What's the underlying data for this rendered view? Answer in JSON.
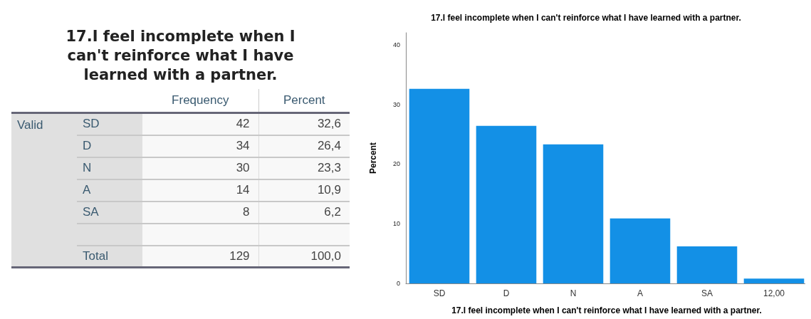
{
  "chart_data": [
    {
      "type": "other",
      "title": "17.I feel incomplete when I can't reinforce what I have learned with a partner.",
      "annotations": [
        "Valid"
      ],
      "categories": [
        "SD",
        "D",
        "N",
        "A",
        "SA",
        null,
        "Total"
      ],
      "data_labels": true,
      "series": [
        {
          "name": "Frequency",
          "values": [
            42,
            34,
            30,
            14,
            8,
            null,
            129
          ]
        },
        {
          "name": "Percent",
          "values": [
            32.6,
            26.4,
            23.3,
            10.9,
            6.2,
            null,
            100.0
          ],
          "value_labels": [
            "32,6",
            "26,4",
            "23,3",
            "10,9",
            "6,2",
            null,
            "100,0"
          ]
        }
      ]
    },
    {
      "type": "bar",
      "title": "17.I feel incomplete when I can't reinforce what I have learned with a partner.",
      "xlabel": "17.I feel incomplete when I can't reinforce what I have learned with a partner.",
      "ylabel": "Percent",
      "categories": [
        "SD",
        "D",
        "N",
        "A",
        "SA",
        "12,00"
      ],
      "values": [
        32.6,
        26.4,
        23.3,
        10.9,
        6.2,
        0.8
      ],
      "color": "#1390e6",
      "ylim": [
        0,
        42
      ],
      "yticks": [
        0,
        10,
        20,
        30,
        40
      ],
      "grid": false
    }
  ]
}
